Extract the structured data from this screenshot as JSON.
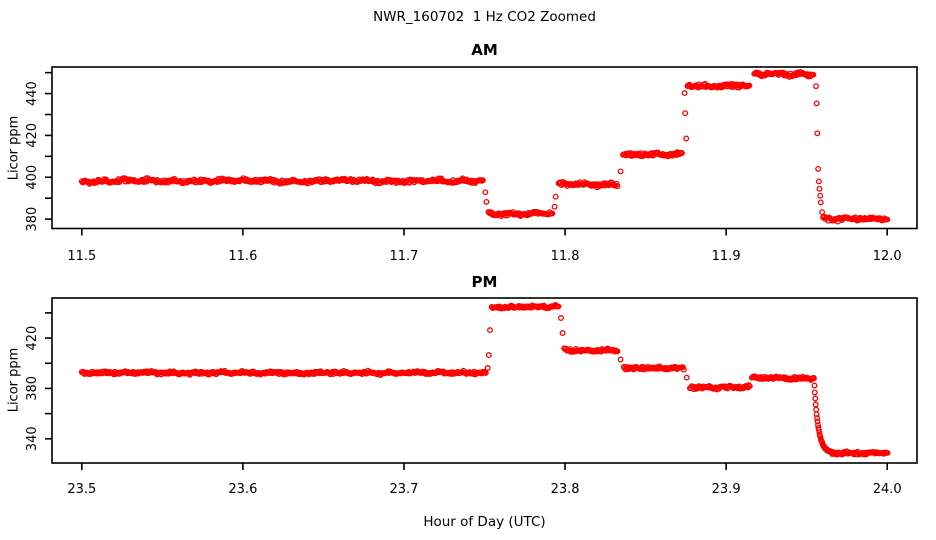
{
  "title": "NWR_160702  1 Hz CO2 Zoomed",
  "xlabel": "Hour of Day (UTC)",
  "colors": {
    "points": "#ff0000",
    "axis": "#000000",
    "background": "#ffffff"
  },
  "chart_data": [
    {
      "type": "scatter",
      "panel": "AM",
      "title": "AM",
      "ylabel": "Licor ppm",
      "marker": "open-circle",
      "grid": false,
      "xlim": [
        11.4815,
        12.0185
      ],
      "ylim": [
        375.5,
        452.7
      ],
      "xticks": [
        11.5,
        11.6,
        11.7,
        11.8,
        11.9,
        12.0
      ],
      "xtick_labels": [
        "11.5",
        "11.6",
        "11.7",
        "11.8",
        "11.9",
        "12.0"
      ],
      "yticks_all": [
        380,
        390,
        400,
        410,
        420,
        430,
        440,
        450
      ],
      "yticks_labeled": [
        380,
        400,
        420,
        440
      ],
      "ytick_labels": [
        "380",
        "400",
        "420",
        "440"
      ],
      "sample_interval_hr": 0.0006,
      "noise_ppm": 0.8,
      "segments": [
        {
          "t0": 11.5,
          "t1": 11.7495,
          "value": 398.2
        },
        {
          "t0": 11.7525,
          "t1": 11.7925,
          "value": 382.5
        },
        {
          "t0": 11.796,
          "t1": 11.833,
          "value": 396.6
        },
        {
          "t0": 11.836,
          "t1": 11.873,
          "value": 410.8
        },
        {
          "t0": 11.876,
          "t1": 11.915,
          "value": 443.8
        },
        {
          "t0": 11.9175,
          "t1": 11.9545,
          "value": 449.3
        },
        {
          "t0": 11.961,
          "t1": 12.0005,
          "value": 380.0
        }
      ],
      "transition_points": [
        {
          "t": 11.7505,
          "value": 392.8
        },
        {
          "t": 11.7512,
          "value": 388.2
        },
        {
          "t": 11.7935,
          "value": 385.9
        },
        {
          "t": 11.7942,
          "value": 390.7
        },
        {
          "t": 11.8345,
          "value": 402.8
        },
        {
          "t": 11.8742,
          "value": 440.2
        },
        {
          "t": 11.8746,
          "value": 430.6
        },
        {
          "t": 11.8752,
          "value": 418.5
        },
        {
          "t": 11.9558,
          "value": 443.5
        },
        {
          "t": 11.9562,
          "value": 435.3
        },
        {
          "t": 11.9566,
          "value": 421.0
        },
        {
          "t": 11.9571,
          "value": 404.0
        },
        {
          "t": 11.9576,
          "value": 398.0
        },
        {
          "t": 11.958,
          "value": 394.5
        },
        {
          "t": 11.9584,
          "value": 391.2
        },
        {
          "t": 11.9588,
          "value": 388.0
        },
        {
          "t": 11.9596,
          "value": 383.3
        },
        {
          "t": 11.9602,
          "value": 380.8
        }
      ]
    },
    {
      "type": "scatter",
      "panel": "PM",
      "title": "PM",
      "ylabel": "Licor ppm",
      "marker": "open-circle",
      "grid": false,
      "xlim": [
        23.4815,
        24.0185
      ],
      "ylim": [
        320.8,
        451.8
      ],
      "xticks": [
        23.5,
        23.6,
        23.7,
        23.8,
        23.9,
        24.0
      ],
      "xtick_labels": [
        "23.5",
        "23.6",
        "23.7",
        "23.8",
        "23.9",
        "24.0"
      ],
      "yticks_all": [
        340,
        360,
        380,
        400,
        420,
        440
      ],
      "yticks_labeled": [
        340,
        380,
        420
      ],
      "ytick_labels": [
        "340",
        "380",
        "420"
      ],
      "sample_interval_hr": 0.0006,
      "noise_ppm": 1.1,
      "segments": [
        {
          "t0": 23.5,
          "t1": 23.751,
          "value": 392.4
        },
        {
          "t0": 23.7545,
          "t1": 23.796,
          "value": 444.8
        },
        {
          "t0": 23.7995,
          "t1": 23.833,
          "value": 410.3
        },
        {
          "t0": 23.8365,
          "t1": 23.874,
          "value": 396.0
        },
        {
          "t0": 23.8775,
          "t1": 23.915,
          "value": 381.0
        },
        {
          "t0": 23.916,
          "t1": 23.9545,
          "value": 388.2
        },
        {
          "t0": 23.966,
          "t1": 24.0005,
          "value": 328.6
        }
      ],
      "transition_points": [
        {
          "t": 23.752,
          "value": 396.2
        },
        {
          "t": 23.7527,
          "value": 406.5
        },
        {
          "t": 23.7534,
          "value": 426.3
        },
        {
          "t": 23.7975,
          "value": 435.9
        },
        {
          "t": 23.7985,
          "value": 424.0
        },
        {
          "t": 23.8345,
          "value": 403.0
        },
        {
          "t": 23.8755,
          "value": 388.6
        }
      ],
      "decay": {
        "t0": 23.9545,
        "t1": 23.966,
        "from": 388.2,
        "to": 328.6,
        "tau_hr": 0.0026,
        "sample_interval_hr": 0.00028
      }
    }
  ]
}
